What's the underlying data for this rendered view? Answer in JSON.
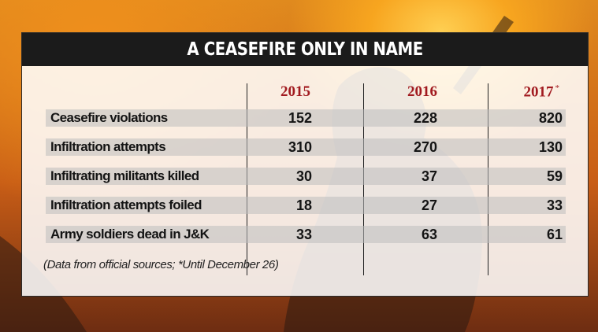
{
  "title": "A CEASEFIRE ONLY IN NAME",
  "chart_data": {
    "type": "table",
    "columns": [
      "2015",
      "2016",
      "2017"
    ],
    "column_marker_2017": "*",
    "rows": [
      {
        "label": "Ceasefire violations",
        "values": [
          "152",
          "228",
          "820"
        ]
      },
      {
        "label": "Infiltration attempts",
        "values": [
          "310",
          "270",
          "130"
        ]
      },
      {
        "label": "Infiltrating militants killed",
        "values": [
          "30",
          "37",
          "59"
        ]
      },
      {
        "label": "Infiltration attempts foiled",
        "values": [
          "18",
          "27",
          "33"
        ]
      },
      {
        "label": "Army soldiers dead in J&K",
        "values": [
          "33",
          "63",
          "61"
        ]
      }
    ],
    "note": "(Data from official sources; *Until December 26)"
  },
  "colors": {
    "year_header": "#a11a1f",
    "title_bar": "#1b1b1b",
    "text": "#141414"
  }
}
